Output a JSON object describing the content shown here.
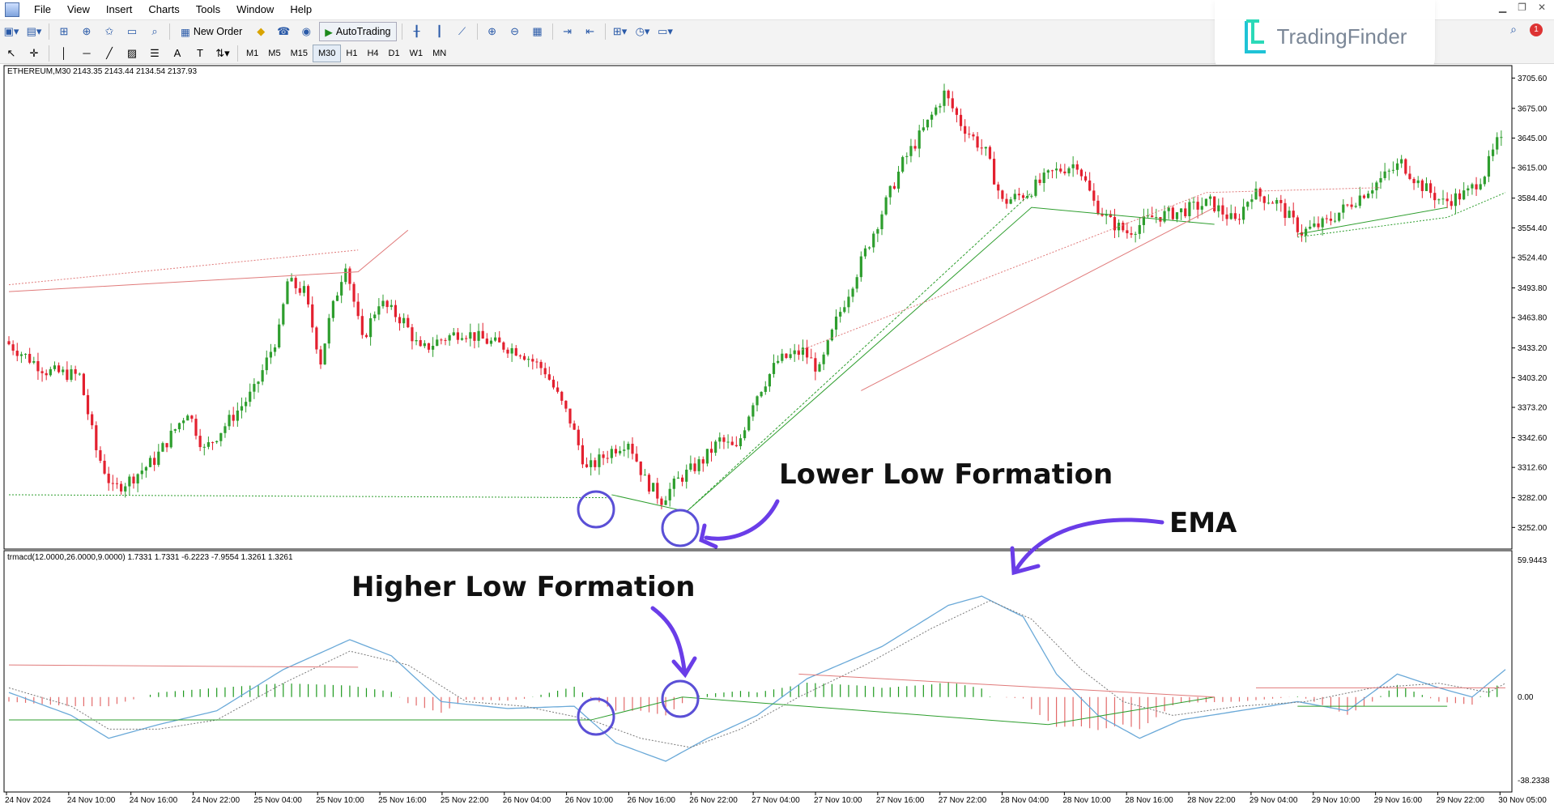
{
  "menu": [
    "File",
    "View",
    "Insert",
    "Charts",
    "Tools",
    "Window",
    "Help"
  ],
  "toolbar": {
    "new_order": "New Order",
    "autotrading": "AutoTrading",
    "timeframes": [
      "M1",
      "M5",
      "M15",
      "M30",
      "H1",
      "H4",
      "D1",
      "W1",
      "MN"
    ],
    "active_timeframe": "M30"
  },
  "watermark": "TradingFinder",
  "notification_count": "1",
  "chart": {
    "symbol_info": "ETHEREUM,M30  2143.35 2143.44 2134.54 2137.93",
    "price_labels": [
      "3705.60",
      "3675.00",
      "3645.00",
      "3615.00",
      "3584.40",
      "3554.40",
      "3524.40",
      "3493.80",
      "3463.80",
      "3433.20",
      "3403.20",
      "3373.20",
      "3342.60",
      "3312.60",
      "3282.00",
      "3252.00"
    ],
    "ylim": [
      3240,
      3710
    ]
  },
  "indicator": {
    "info": "trmacd(12.0000,26.0000,9.0000) 1.7331 1.7331 -6.2223 -7.9554 1.3261 1.3261",
    "scale_labels": [
      "59.9443",
      "0.00",
      "-38.2338"
    ],
    "ylim": [
      -38.2338,
      59.9443
    ]
  },
  "time_labels": [
    "24 Nov 2024",
    "24 Nov 10:00",
    "24 Nov 16:00",
    "24 Nov 22:00",
    "25 Nov 04:00",
    "25 Nov 10:00",
    "25 Nov 16:00",
    "25 Nov 22:00",
    "26 Nov 04:00",
    "26 Nov 10:00",
    "26 Nov 16:00",
    "26 Nov 22:00",
    "27 Nov 04:00",
    "27 Nov 10:00",
    "27 Nov 16:00",
    "27 Nov 22:00",
    "28 Nov 04:00",
    "28 Nov 10:00",
    "28 Nov 16:00",
    "28 Nov 22:00",
    "29 Nov 04:00",
    "29 Nov 10:00",
    "29 Nov 16:00",
    "29 Nov 22:00",
    "30 Nov 05:00"
  ],
  "annotations": {
    "lower_low": "Lower Low Formation",
    "higher_low": "Higher Low Formation",
    "ema": "EMA"
  },
  "colors": {
    "bull": "#2e9e2e",
    "bear": "#e3202f",
    "macd": "#6aa9d8",
    "signal": "#7a7a7a",
    "hist_pos": "#1f9a1f",
    "hist_neg": "#e36a6a",
    "circle": "#5a4fd6",
    "arrow": "#6a3de8"
  }
}
